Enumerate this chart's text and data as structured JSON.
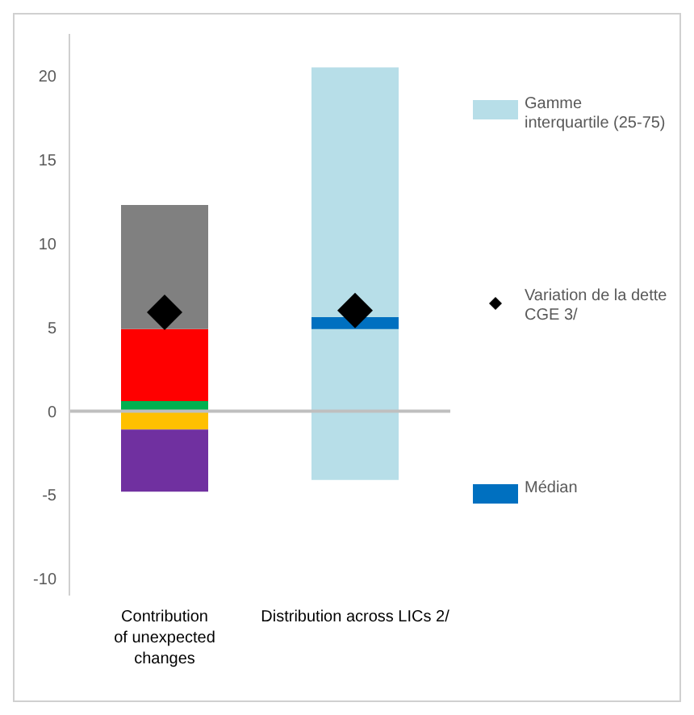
{
  "chart_data": {
    "type": "bar",
    "categories": [
      "Contribution of unexpected changes",
      "Distribution across LICs 2/"
    ],
    "series": [
      {
        "color": "#ffc000",
        "base": [
          0,
          null
        ],
        "values": [
          -1.1,
          null
        ]
      },
      {
        "color": "#7030a0",
        "base": [
          -1.1,
          null
        ],
        "values": [
          -3.7,
          null
        ]
      },
      {
        "color": "#00b050",
        "base": [
          0,
          null
        ],
        "values": [
          0.6,
          null
        ]
      },
      {
        "color": "#ff0000",
        "base": [
          0.6,
          null
        ],
        "values": [
          4.3,
          null
        ]
      },
      {
        "color": "#808080",
        "base": [
          4.9,
          null
        ],
        "values": [
          7.4,
          null
        ]
      },
      {
        "name": "Gamme interquartile (25-75)",
        "color": "#b7dee8",
        "base": [
          null,
          -4.1
        ],
        "values": [
          null,
          24.6
        ]
      },
      {
        "type": "scatter",
        "name": "Variation de la dette CGE 3/",
        "color": "#000000",
        "marker": "diamond",
        "values": [
          5.9,
          6.0
        ]
      },
      {
        "name": "Médian",
        "color": "#0070c0",
        "base": [
          null,
          4.9
        ],
        "values": [
          null,
          0.7
        ]
      }
    ],
    "ylim": [
      -11,
      22.5
    ],
    "yticks": [
      -10,
      -5,
      0,
      5,
      10,
      15,
      20
    ],
    "ref_lines": [
      {
        "axis": "y",
        "value": 0,
        "color": "#bfbfbf"
      }
    ],
    "grid": false,
    "legend": "right"
  }
}
